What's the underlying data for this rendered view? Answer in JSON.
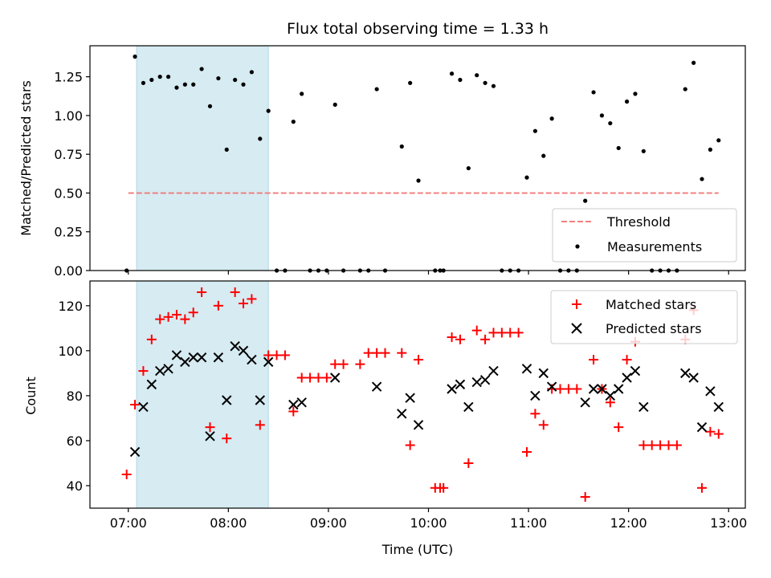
{
  "chart_data": [
    {
      "type": "scatter",
      "title": "Flux total observing time = 1.33 h",
      "xlabel": "",
      "ylabel": "Matched/Predicted stars",
      "ylim": [
        0,
        1.45
      ],
      "yticks": [
        0.0,
        0.25,
        0.5,
        0.75,
        1.0,
        1.25
      ],
      "ytick_labels": [
        "0.00",
        "0.25",
        "0.50",
        "0.75",
        "1.00",
        "1.25"
      ],
      "xlim": [
        "06:37",
        "13:10"
      ],
      "shaded_interval": [
        "07:05",
        "08:24"
      ],
      "threshold": {
        "name": "Threshold",
        "value": 0.5,
        "x_start": "07:00",
        "x_end": "12:54",
        "color": "#f08080"
      },
      "series": [
        {
          "name": "Measurements",
          "color": "#000000",
          "points": [
            [
              "06:59",
              0.0
            ],
            [
              "07:04",
              1.38
            ],
            [
              "07:09",
              1.21
            ],
            [
              "07:14",
              1.23
            ],
            [
              "07:19",
              1.25
            ],
            [
              "07:24",
              1.25
            ],
            [
              "07:29",
              1.18
            ],
            [
              "07:34",
              1.2
            ],
            [
              "07:39",
              1.2
            ],
            [
              "07:44",
              1.3
            ],
            [
              "07:49",
              1.06
            ],
            [
              "07:54",
              1.24
            ],
            [
              "07:59",
              0.78
            ],
            [
              "08:04",
              1.23
            ],
            [
              "08:09",
              1.2
            ],
            [
              "08:14",
              1.28
            ],
            [
              "08:19",
              0.85
            ],
            [
              "08:24",
              1.03
            ],
            [
              "08:29",
              0.0
            ],
            [
              "08:34",
              0.0
            ],
            [
              "08:39",
              0.96
            ],
            [
              "08:44",
              1.14
            ],
            [
              "08:49",
              0.0
            ],
            [
              "08:54",
              0.0
            ],
            [
              "08:59",
              0.0
            ],
            [
              "09:04",
              1.07
            ],
            [
              "09:09",
              0.0
            ],
            [
              "09:19",
              0.0
            ],
            [
              "09:24",
              0.0
            ],
            [
              "09:29",
              1.17
            ],
            [
              "09:34",
              0.0
            ],
            [
              "09:44",
              0.8
            ],
            [
              "09:49",
              1.21
            ],
            [
              "09:54",
              0.58
            ],
            [
              "10:04",
              0.0
            ],
            [
              "10:07",
              0.0
            ],
            [
              "10:09",
              0.0
            ],
            [
              "10:14",
              1.27
            ],
            [
              "10:19",
              1.23
            ],
            [
              "10:24",
              0.66
            ],
            [
              "10:29",
              1.26
            ],
            [
              "10:34",
              1.21
            ],
            [
              "10:39",
              1.19
            ],
            [
              "10:44",
              0.0
            ],
            [
              "10:49",
              0.0
            ],
            [
              "10:54",
              0.0
            ],
            [
              "10:59",
              0.6
            ],
            [
              "11:04",
              0.9
            ],
            [
              "11:09",
              0.74
            ],
            [
              "11:14",
              0.98
            ],
            [
              "11:19",
              0.0
            ],
            [
              "11:24",
              0.0
            ],
            [
              "11:29",
              0.0
            ],
            [
              "11:34",
              0.45
            ],
            [
              "11:39",
              1.15
            ],
            [
              "11:44",
              1.0
            ],
            [
              "11:49",
              0.95
            ],
            [
              "11:54",
              0.79
            ],
            [
              "11:59",
              1.09
            ],
            [
              "12:04",
              1.14
            ],
            [
              "12:09",
              0.77
            ],
            [
              "12:14",
              0.0
            ],
            [
              "12:19",
              0.0
            ],
            [
              "12:24",
              0.0
            ],
            [
              "12:29",
              0.0
            ],
            [
              "12:34",
              1.17
            ],
            [
              "12:39",
              1.34
            ],
            [
              "12:44",
              0.59
            ],
            [
              "12:49",
              0.78
            ],
            [
              "12:54",
              0.84
            ]
          ]
        }
      ],
      "legend": {
        "position": "lower right",
        "entries": [
          "Threshold",
          "Measurements"
        ]
      },
      "grid": false
    },
    {
      "type": "scatter",
      "title": "",
      "xlabel": "Time (UTC)",
      "ylabel": "Count",
      "ylim": [
        30,
        131
      ],
      "yticks": [
        40,
        60,
        80,
        100,
        120
      ],
      "xlim": [
        "06:37",
        "13:10"
      ],
      "xticks": [
        "07:00",
        "08:00",
        "09:00",
        "10:00",
        "11:00",
        "12:00",
        "13:00"
      ],
      "shaded_interval": [
        "07:05",
        "08:24"
      ],
      "series": [
        {
          "name": "Matched stars",
          "marker": "+",
          "color": "#ff0000",
          "points": [
            [
              "06:59",
              45
            ],
            [
              "07:04",
              76
            ],
            [
              "07:09",
              91
            ],
            [
              "07:14",
              105
            ],
            [
              "07:19",
              114
            ],
            [
              "07:24",
              115
            ],
            [
              "07:29",
              116
            ],
            [
              "07:34",
              114
            ],
            [
              "07:39",
              117
            ],
            [
              "07:44",
              126
            ],
            [
              "07:49",
              66
            ],
            [
              "07:54",
              120
            ],
            [
              "07:59",
              61
            ],
            [
              "08:04",
              126
            ],
            [
              "08:09",
              121
            ],
            [
              "08:14",
              123
            ],
            [
              "08:19",
              67
            ],
            [
              "08:24",
              98
            ],
            [
              "08:29",
              98
            ],
            [
              "08:34",
              98
            ],
            [
              "08:39",
              73
            ],
            [
              "08:44",
              88
            ],
            [
              "08:49",
              88
            ],
            [
              "08:54",
              88
            ],
            [
              "08:59",
              88
            ],
            [
              "09:04",
              94
            ],
            [
              "09:09",
              94
            ],
            [
              "09:19",
              94
            ],
            [
              "09:24",
              99
            ],
            [
              "09:29",
              99
            ],
            [
              "09:34",
              99
            ],
            [
              "09:44",
              99
            ],
            [
              "09:49",
              58
            ],
            [
              "09:54",
              96
            ],
            [
              "10:04",
              39
            ],
            [
              "10:07",
              39
            ],
            [
              "10:09",
              39
            ],
            [
              "10:14",
              106
            ],
            [
              "10:19",
              105
            ],
            [
              "10:24",
              50
            ],
            [
              "10:29",
              109
            ],
            [
              "10:34",
              105
            ],
            [
              "10:39",
              108
            ],
            [
              "10:44",
              108
            ],
            [
              "10:49",
              108
            ],
            [
              "10:54",
              108
            ],
            [
              "10:59",
              55
            ],
            [
              "11:04",
              72
            ],
            [
              "11:09",
              67
            ],
            [
              "11:14",
              83
            ],
            [
              "11:19",
              83
            ],
            [
              "11:24",
              83
            ],
            [
              "11:29",
              83
            ],
            [
              "11:34",
              35
            ],
            [
              "11:39",
              96
            ],
            [
              "11:44",
              83
            ],
            [
              "11:49",
              77
            ],
            [
              "11:54",
              66
            ],
            [
              "11:59",
              96
            ],
            [
              "12:04",
              104
            ],
            [
              "12:09",
              58
            ],
            [
              "12:14",
              58
            ],
            [
              "12:19",
              58
            ],
            [
              "12:24",
              58
            ],
            [
              "12:29",
              58
            ],
            [
              "12:34",
              105
            ],
            [
              "12:39",
              118
            ],
            [
              "12:44",
              39
            ],
            [
              "12:49",
              64
            ],
            [
              "12:54",
              63
            ]
          ]
        },
        {
          "name": "Predicted stars",
          "marker": "x",
          "color": "#000000",
          "points": [
            [
              "07:04",
              55
            ],
            [
              "07:09",
              75
            ],
            [
              "07:14",
              85
            ],
            [
              "07:19",
              91
            ],
            [
              "07:24",
              92
            ],
            [
              "07:29",
              98
            ],
            [
              "07:34",
              95
            ],
            [
              "07:39",
              97
            ],
            [
              "07:44",
              97
            ],
            [
              "07:49",
              62
            ],
            [
              "07:54",
              97
            ],
            [
              "07:59",
              78
            ],
            [
              "08:04",
              102
            ],
            [
              "08:09",
              100
            ],
            [
              "08:14",
              96
            ],
            [
              "08:19",
              78
            ],
            [
              "08:24",
              95
            ],
            [
              "08:39",
              76
            ],
            [
              "08:44",
              77
            ],
            [
              "09:04",
              88
            ],
            [
              "09:29",
              84
            ],
            [
              "09:44",
              72
            ],
            [
              "09:49",
              79
            ],
            [
              "09:54",
              67
            ],
            [
              "10:14",
              83
            ],
            [
              "10:19",
              85
            ],
            [
              "10:24",
              75
            ],
            [
              "10:29",
              86
            ],
            [
              "10:34",
              87
            ],
            [
              "10:39",
              91
            ],
            [
              "10:59",
              92
            ],
            [
              "11:04",
              80
            ],
            [
              "11:09",
              90
            ],
            [
              "11:14",
              84
            ],
            [
              "11:34",
              77
            ],
            [
              "11:39",
              83
            ],
            [
              "11:44",
              83
            ],
            [
              "11:49",
              80
            ],
            [
              "11:54",
              83
            ],
            [
              "11:59",
              88
            ],
            [
              "12:04",
              91
            ],
            [
              "12:09",
              75
            ],
            [
              "12:34",
              90
            ],
            [
              "12:39",
              88
            ],
            [
              "12:44",
              66
            ],
            [
              "12:49",
              82
            ],
            [
              "12:54",
              75
            ]
          ]
        }
      ],
      "legend": {
        "position": "upper right",
        "entries": [
          "Matched stars",
          "Predicted stars"
        ]
      },
      "grid": false
    }
  ],
  "colors": {
    "shade": "#add8e6",
    "threshold": "#f08080",
    "matched": "#ff0000",
    "predicted": "#000000"
  }
}
